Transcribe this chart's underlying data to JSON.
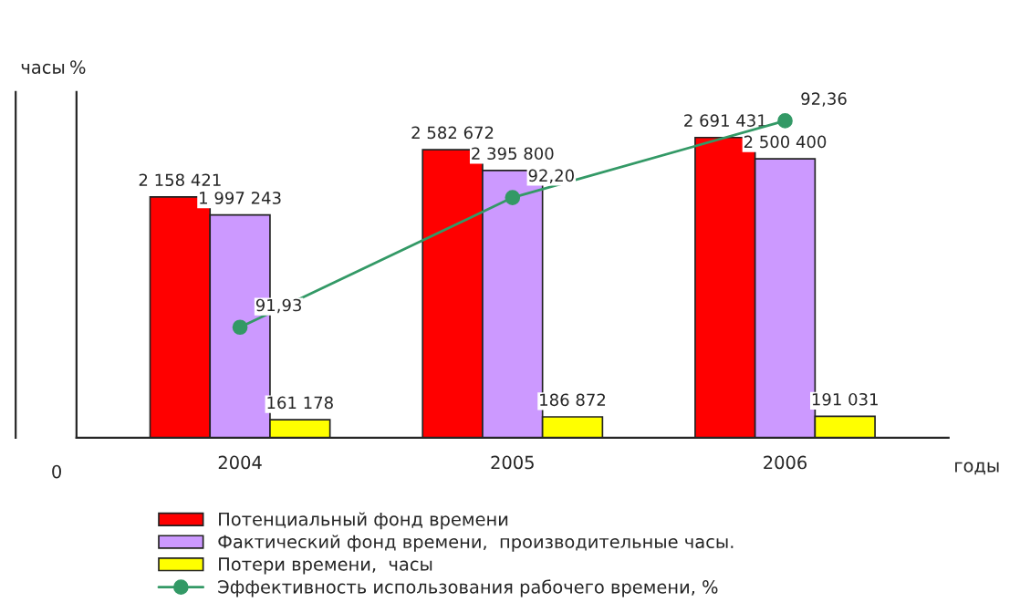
{
  "chart_data": {
    "type": "bar",
    "categories": [
      "2004",
      "2005",
      "2006"
    ],
    "ylabel": "часы",
    "y2label": "%",
    "xlabel": "годы",
    "ylim": [
      0,
      3100000
    ],
    "y2lim": [
      91.7,
      92.42
    ],
    "tick_labels": "x",
    "legend": "bottom",
    "grid": false,
    "annotations": [
      "0"
    ],
    "series": [
      {
        "name": "Потенциальный фонд времени",
        "color": "#ff0000",
        "values": [
          2158421,
          2582672,
          2691431
        ],
        "value_labels": [
          "2 158 421",
          "2 582 672",
          "2 691 431"
        ]
      },
      {
        "name": "Фактический фонд времени,  производительные часы.",
        "color": "#cc99ff",
        "values": [
          1997243,
          2395800,
          2500400
        ],
        "value_labels": [
          "1 997 243",
          "2 395 800",
          "2 500 400"
        ]
      },
      {
        "name": "Потери времени,  часы",
        "color": "#ffff00",
        "values": [
          161178,
          186872,
          191031
        ],
        "value_labels": [
          "161 178",
          "186 872",
          "191 031"
        ]
      },
      {
        "name": "Эффективность использования рабочего времени, %",
        "type": "line",
        "axis": "y2",
        "color": "#339966",
        "marker": "circle",
        "values": [
          91.93,
          92.2,
          92.36
        ],
        "value_labels": [
          "91,93",
          "92,20",
          "92,36"
        ]
      }
    ]
  }
}
